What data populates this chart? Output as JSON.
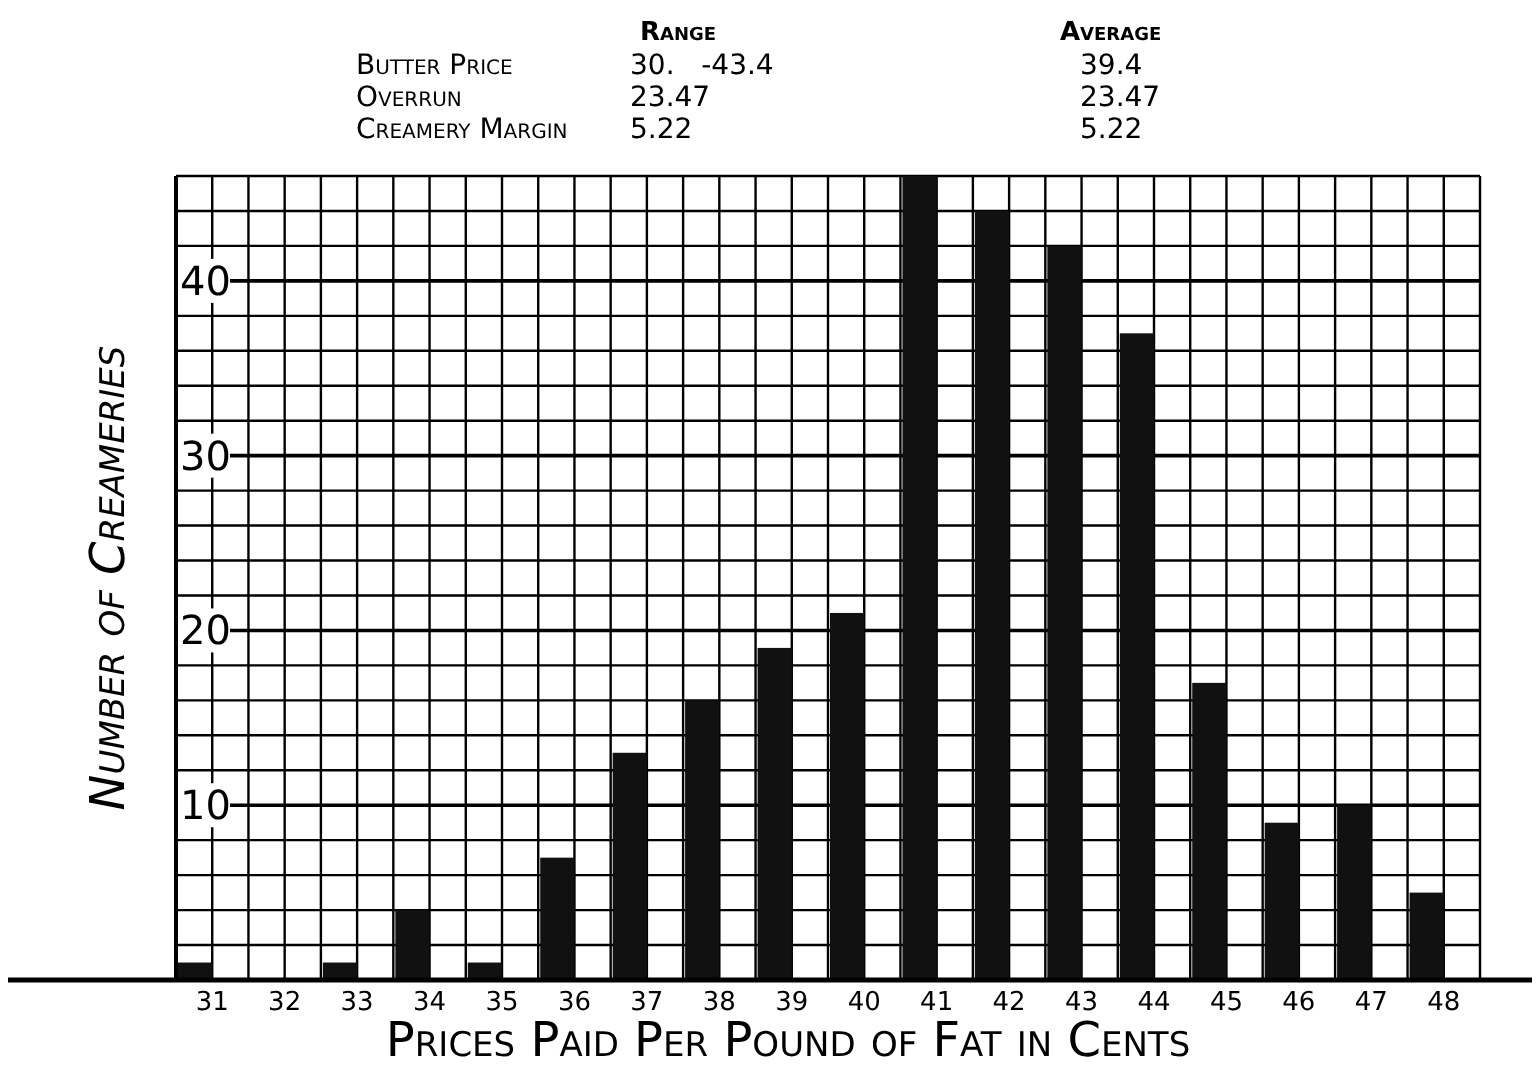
{
  "chart_data": {
    "type": "bar",
    "xlabel": "Prices Paid Per Pound of Fat in Cents",
    "ylabel": "Number of Creameries",
    "categories": [
      "31",
      "32",
      "33",
      "34",
      "35",
      "36",
      "37",
      "38",
      "39",
      "40",
      "41",
      "42",
      "43",
      "44",
      "45",
      "46",
      "47",
      "48"
    ],
    "values": [
      1,
      0,
      1,
      4,
      1,
      7,
      13,
      16,
      19,
      21,
      46,
      44,
      42,
      37,
      17,
      9,
      10,
      5
    ],
    "color": "#111111",
    "ylim": [
      0,
      46
    ],
    "yticks": [
      {
        "value": 0,
        "label": null
      },
      {
        "value": 2,
        "label": null
      },
      {
        "value": 4,
        "label": null
      },
      {
        "value": 6,
        "label": null
      },
      {
        "value": 8,
        "label": null
      },
      10,
      {
        "value": 12,
        "label": null
      },
      {
        "value": 14,
        "label": null
      },
      {
        "value": 16,
        "label": null
      },
      {
        "value": 18,
        "label": null
      },
      20,
      {
        "value": 22,
        "label": null
      },
      {
        "value": 24,
        "label": null
      },
      {
        "value": 26,
        "label": null
      },
      {
        "value": 28,
        "label": null
      },
      30,
      {
        "value": 32,
        "label": null
      },
      {
        "value": 34,
        "label": null
      },
      {
        "value": 36,
        "label": null
      },
      {
        "value": 38,
        "label": null
      },
      40,
      {
        "value": 42,
        "label": null
      },
      {
        "value": 44,
        "label": null
      },
      {
        "value": 46,
        "label": null
      }
    ],
    "grid": true,
    "annotations": [
      "Range",
      "Average",
      "Butter Price",
      "30.   -43.4",
      "39.4",
      "Overrun",
      "23.47",
      "23.47",
      "Creamery Margin",
      "5.22",
      "5.22"
    ]
  }
}
